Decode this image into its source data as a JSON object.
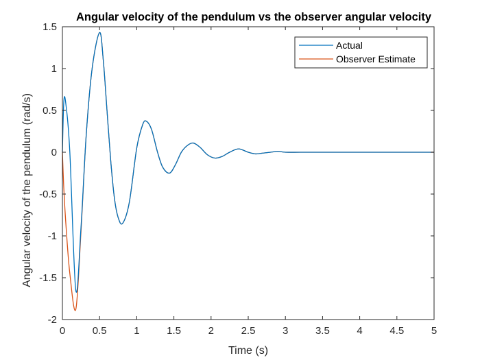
{
  "chart_data": {
    "type": "line",
    "title": "Angular velocity of the pendulum vs the observer angular velocity",
    "xlabel": "Time (s)",
    "ylabel": "Angular velocity of the pendulum (rad/s)",
    "xlim": [
      0,
      5
    ],
    "ylim": [
      -2,
      1.5
    ],
    "xticks": [
      0,
      0.5,
      1,
      1.5,
      2,
      2.5,
      3,
      3.5,
      4,
      4.5,
      5
    ],
    "xtick_labels": [
      "0",
      "0.5",
      "1",
      "1.5",
      "2",
      "2.5",
      "3",
      "3.5",
      "4",
      "4.5",
      "5"
    ],
    "yticks": [
      -2,
      -1.5,
      -1,
      -0.5,
      0,
      0.5,
      1,
      1.5
    ],
    "ytick_labels": [
      "-2",
      "-1.5",
      "-1",
      "-0.5",
      "0",
      "0.5",
      "1",
      "1.5"
    ],
    "grid": false,
    "legend_position": "top-right",
    "series": [
      {
        "name": "Actual",
        "color": "#0072BD",
        "x": [
          0,
          0.02,
          0.05,
          0.1,
          0.18,
          0.25,
          0.32,
          0.4,
          0.5,
          0.55,
          0.6,
          0.65,
          0.7,
          0.75,
          0.81,
          0.9,
          1.0,
          1.08,
          1.13,
          1.2,
          1.28,
          1.35,
          1.44,
          1.52,
          1.6,
          1.68,
          1.76,
          1.85,
          1.95,
          2.05,
          2.15,
          2.25,
          2.37,
          2.5,
          2.6,
          2.7,
          2.8,
          2.9,
          3.0,
          3.2,
          3.5,
          4.0,
          4.5,
          5.0
        ],
        "y": [
          0,
          0.62,
          0.55,
          0,
          -1.65,
          -0.9,
          0.2,
          1.0,
          1.43,
          1.1,
          0.5,
          -0.1,
          -0.55,
          -0.78,
          -0.85,
          -0.6,
          0.05,
          0.33,
          0.37,
          0.27,
          0.0,
          -0.18,
          -0.25,
          -0.15,
          0.0,
          0.08,
          0.11,
          0.06,
          -0.03,
          -0.07,
          -0.05,
          0.0,
          0.04,
          0.0,
          -0.02,
          -0.01,
          0.0,
          0.01,
          0.0,
          0.0,
          0.0,
          0.0,
          0.0,
          0.0
        ]
      },
      {
        "name": "Observer Estimate",
        "color": "#D95319",
        "x": [
          0,
          0.02,
          0.05,
          0.1,
          0.18,
          0.25,
          0.32,
          0.4,
          0.5,
          0.55,
          0.6,
          0.65,
          0.7,
          0.75,
          0.81,
          0.9,
          1.0,
          1.08,
          1.13,
          1.2,
          1.28,
          1.35,
          1.44,
          1.52,
          1.6,
          1.68,
          1.76,
          1.85,
          1.95,
          2.05,
          2.15,
          2.25,
          2.37,
          2.5,
          2.6,
          2.7,
          2.8,
          2.9,
          3.0,
          3.2,
          3.5,
          4.0,
          4.5,
          5.0
        ],
        "y": [
          0,
          -0.45,
          -0.9,
          -1.45,
          -1.88,
          -0.95,
          0.2,
          1.0,
          1.43,
          1.1,
          0.5,
          -0.1,
          -0.55,
          -0.78,
          -0.85,
          -0.6,
          0.05,
          0.33,
          0.37,
          0.27,
          0.0,
          -0.18,
          -0.25,
          -0.15,
          0.0,
          0.08,
          0.11,
          0.06,
          -0.03,
          -0.07,
          -0.05,
          0.0,
          0.04,
          0.0,
          -0.02,
          -0.01,
          0.0,
          0.01,
          0.0,
          0.0,
          0.0,
          0.0,
          0.0,
          0.0
        ]
      }
    ]
  }
}
